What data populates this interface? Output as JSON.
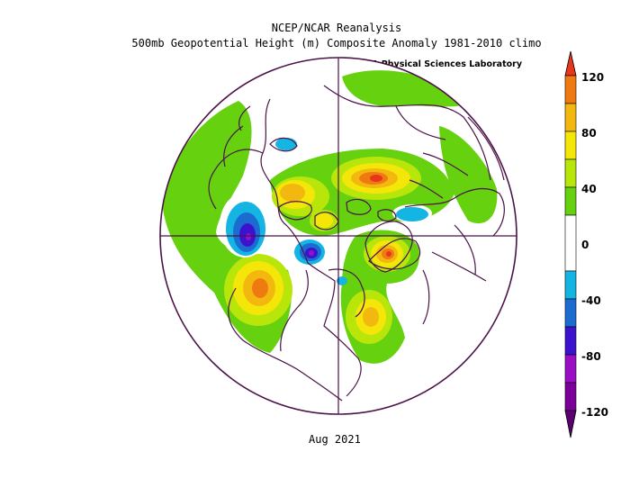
{
  "titles": {
    "line1": "NCEP/NCAR Reanalysis",
    "line2": "500mb Geopotential Height (m) Composite Anomaly 1981-2010 climo",
    "lab": "NOAA Physical Sciences Laboratory",
    "date": "Aug 2021"
  },
  "colorbar": {
    "ticks": [
      "120",
      "80",
      "40",
      "0",
      "-40",
      "-80",
      "-120"
    ],
    "colors": [
      "#7a0099",
      "#9a0ec6",
      "#3b13cf",
      "#1c6bd1",
      "#14b5e3",
      "#ffffff",
      "#ffffff",
      "#66d10e",
      "#b8e60b",
      "#f5e60a",
      "#f2b80f",
      "#f07a12",
      "#e8361a"
    ]
  },
  "map": {
    "projection": "north-polar-stereographic",
    "colors": {
      "coast": "#4b1248",
      "green": "#66d10e",
      "lime": "#b8e60b",
      "yellow": "#f5e60a",
      "orange": "#f2b80f",
      "darkorange": "#f07a12",
      "red": "#e8361a",
      "cyan": "#14b5e3",
      "blue": "#1c6bd1",
      "indigo": "#3b13cf",
      "violet": "#9a0ec6",
      "purple": "#7a0099"
    }
  }
}
